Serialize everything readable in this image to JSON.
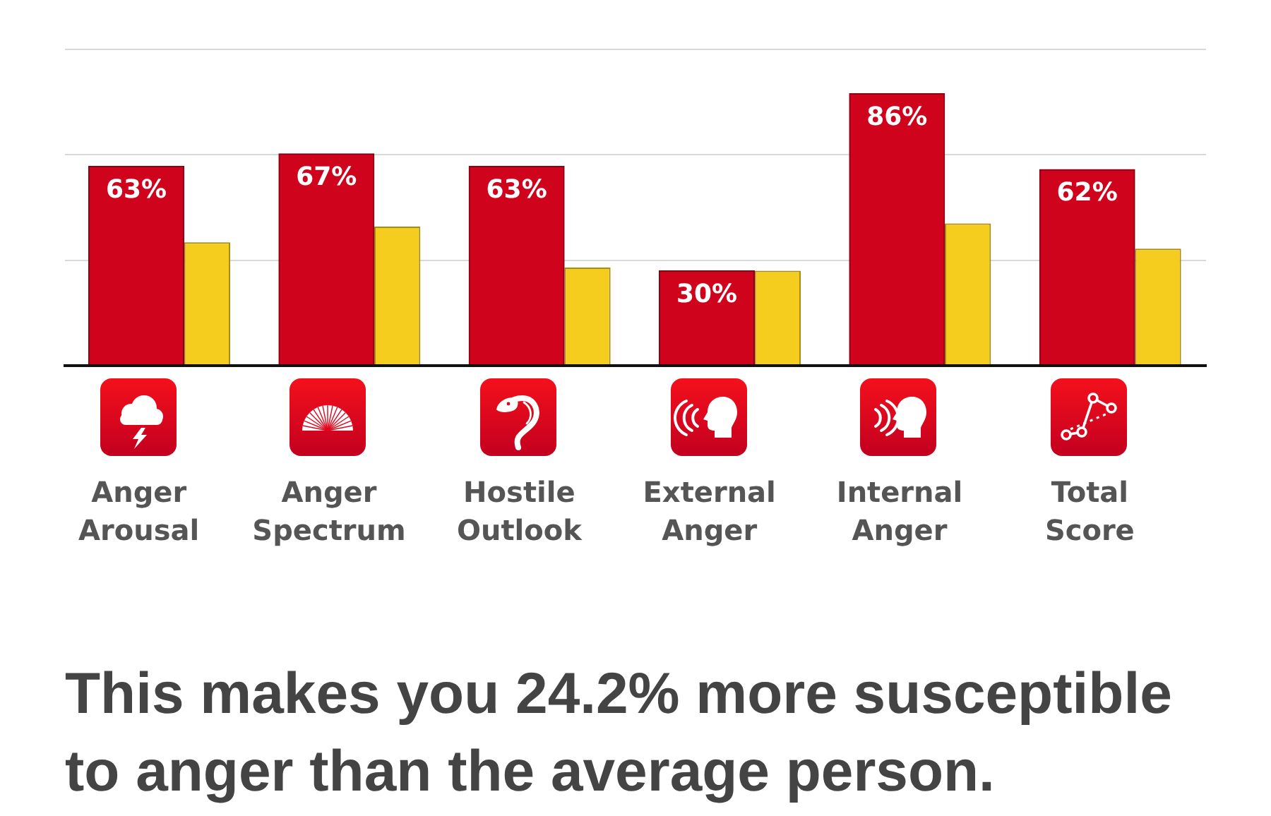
{
  "chart_data": {
    "type": "bar",
    "categories": [
      "Anger Arousal",
      "Anger Spectrum",
      "Hostile Outlook",
      "External Anger",
      "Internal Anger",
      "Total Score"
    ],
    "series": [
      {
        "color": "#d0031c",
        "values": [
          63,
          67,
          63,
          30,
          86,
          62
        ],
        "value_labels": [
          "63%",
          "67%",
          "63%",
          "30%",
          "86%",
          "62%"
        ]
      },
      {
        "color": "#f5cd1f",
        "values": [
          39,
          44,
          31,
          30,
          45,
          37
        ]
      }
    ],
    "ylim": [
      0,
      100
    ],
    "yticks": [
      {
        "value": 0,
        "label": null
      },
      {
        "value": 33.3,
        "label": null
      },
      {
        "value": 66.7,
        "label": null
      },
      {
        "value": 100,
        "label": null
      }
    ],
    "grid": "y",
    "tick_labels": "x",
    "annotations": [
      "This makes you 24.2% more susceptible to anger than the average person."
    ]
  }
}
